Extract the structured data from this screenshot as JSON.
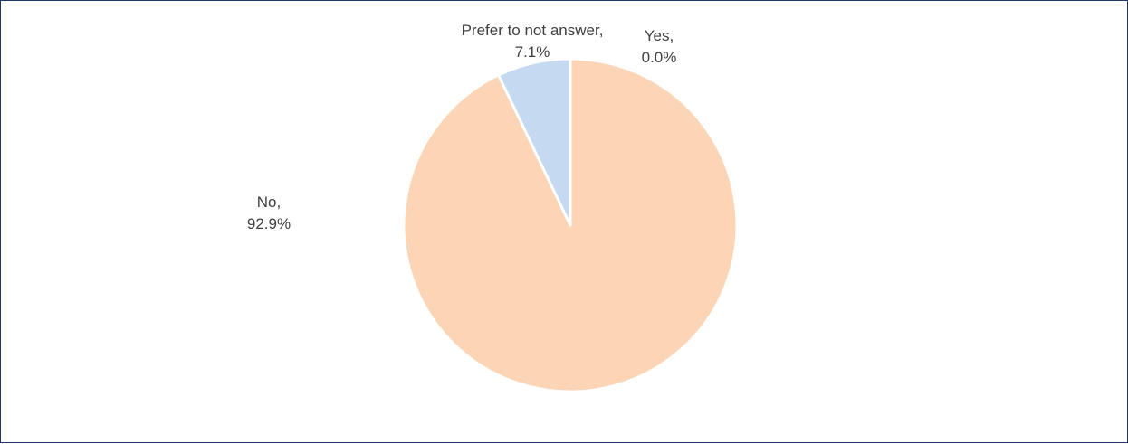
{
  "chart_data": {
    "type": "pie",
    "title": "",
    "slices": [
      {
        "label": "Yes",
        "value": 0.0,
        "label_text": "Yes,",
        "value_text": "0.0%",
        "color": "#c5d9f1"
      },
      {
        "label": "No",
        "value": 92.9,
        "label_text": "No,",
        "value_text": "92.9%",
        "color": "#fbd5b5"
      },
      {
        "label": "Prefer to not answer",
        "value": 7.1,
        "label_text": "Prefer to not answer,",
        "value_text": "7.1%",
        "color": "#c5d9f1"
      }
    ],
    "start_angle": "12 o'clock",
    "direction": "clockwise",
    "slice_separator_color": "#ffffff",
    "legend": "none"
  }
}
